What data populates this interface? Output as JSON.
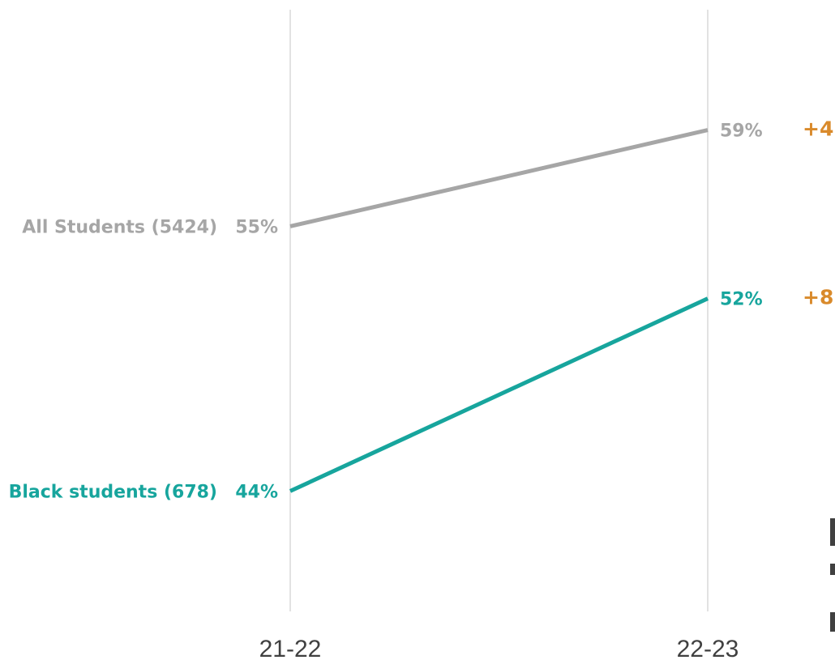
{
  "chart_data": {
    "type": "line",
    "x": [
      "21-22",
      "22-23"
    ],
    "series": [
      {
        "name": "All Students (5424)",
        "values": [
          55,
          59
        ],
        "value_labels": [
          "55%",
          "59%"
        ],
        "change_label": "+4",
        "color": "#a6a6a6"
      },
      {
        "name": "Black students (678)",
        "values": [
          44,
          52
        ],
        "value_labels": [
          "44%",
          "52%"
        ],
        "change_label": "+8",
        "color": "#17a59d"
      }
    ],
    "ylim": [
      39,
      64
    ],
    "grid": "vertical",
    "change_color": "#d98a2b",
    "gridline_color": "#d9d9d9"
  }
}
